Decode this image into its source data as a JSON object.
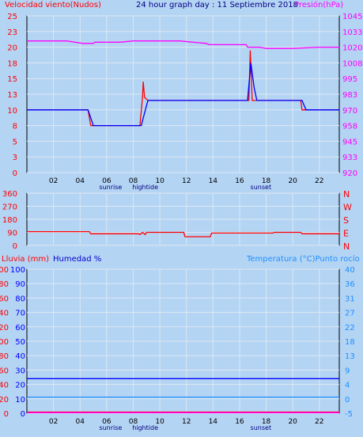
{
  "header": {
    "wind_title": "Velocidad viento(Nudos)",
    "graph_title": "24 hour graph day : 11 Septiembre 2018",
    "pressure_title": "Presión(hPa)"
  },
  "colors": {
    "background": "#b4d4f4",
    "grid": "#dce8f2",
    "red": "#ff0000",
    "blue": "#0000ff",
    "magenta": "#ff00ff",
    "cyan": "#1e90ff"
  },
  "chart_data": [
    {
      "type": "line",
      "panel": "wind-pressure",
      "x_ticks": [
        "02",
        "04",
        "06",
        "08",
        "10",
        "12",
        "14",
        "16",
        "18",
        "20",
        "22"
      ],
      "x_markers": {
        "sunrise": "sunrise",
        "hightide": "hightide",
        "sunset": "sunset"
      },
      "y_left_ticks": [
        "0",
        "3",
        "5",
        "8",
        "10",
        "13",
        "15",
        "18",
        "20",
        "23",
        "25"
      ],
      "y_left_range": [
        0,
        25
      ],
      "y_right_ticks": [
        "920",
        "933",
        "945",
        "958",
        "970",
        "983",
        "995",
        "1008",
        "1020",
        "1033",
        "1045"
      ],
      "y_right_range": [
        920,
        1045
      ],
      "series": [
        {
          "axis": "left",
          "color": "red",
          "points": [
            [
              0,
              10
            ],
            [
              4.6,
              10
            ],
            [
              4.8,
              7.5
            ],
            [
              8.5,
              7.5
            ],
            [
              8.7,
              12
            ],
            [
              8.75,
              14.5
            ],
            [
              8.85,
              12
            ],
            [
              9.1,
              11.5
            ],
            [
              16.7,
              11.5
            ],
            [
              16.8,
              19.5
            ],
            [
              16.95,
              11.5
            ],
            [
              20.6,
              11.5
            ],
            [
              20.7,
              10
            ],
            [
              23.5,
              10
            ]
          ]
        },
        {
          "axis": "left",
          "color": "blue",
          "points": [
            [
              0,
              10
            ],
            [
              4.6,
              10
            ],
            [
              5.0,
              7.5
            ],
            [
              8.6,
              7.5
            ],
            [
              9.1,
              11.5
            ],
            [
              16.6,
              11.5
            ],
            [
              16.85,
              17.5
            ],
            [
              17.1,
              13.5
            ],
            [
              17.3,
              11.5
            ],
            [
              20.7,
              11.5
            ],
            [
              21.0,
              10
            ],
            [
              23.5,
              10
            ]
          ]
        },
        {
          "axis": "right",
          "color": "magenta",
          "points": [
            [
              0,
              1025
            ],
            [
              3.0,
              1025
            ],
            [
              4.2,
              1023
            ],
            [
              5.0,
              1023
            ],
            [
              5.1,
              1024
            ],
            [
              7.0,
              1024
            ],
            [
              8.0,
              1025
            ],
            [
              11.5,
              1025
            ],
            [
              12.5,
              1024
            ],
            [
              13.5,
              1023
            ],
            [
              13.7,
              1022
            ],
            [
              16.5,
              1022
            ],
            [
              16.6,
              1020
            ],
            [
              17.5,
              1020
            ],
            [
              18.0,
              1019
            ],
            [
              20.0,
              1019
            ],
            [
              22.0,
              1020
            ],
            [
              23.5,
              1020
            ]
          ]
        }
      ]
    },
    {
      "type": "line",
      "panel": "wind-direction",
      "y_left_ticks": [
        "0",
        "90",
        "180",
        "270",
        "360"
      ],
      "y_left_range": [
        0,
        360
      ],
      "y_right_labels": [
        "N",
        "E",
        "S",
        "W",
        "N"
      ],
      "series": [
        {
          "axis": "left",
          "color": "red",
          "points": [
            [
              0,
              95
            ],
            [
              4.7,
              95
            ],
            [
              4.8,
              80
            ],
            [
              8.4,
              80
            ],
            [
              8.5,
              75
            ],
            [
              8.7,
              90
            ],
            [
              8.9,
              75
            ],
            [
              9.0,
              90
            ],
            [
              11.8,
              90
            ],
            [
              11.9,
              60
            ],
            [
              13.8,
              60
            ],
            [
              13.9,
              85
            ],
            [
              17.0,
              85
            ],
            [
              18.5,
              85
            ],
            [
              18.6,
              90
            ],
            [
              20.6,
              90
            ],
            [
              20.7,
              80
            ],
            [
              23.5,
              80
            ]
          ]
        }
      ]
    },
    {
      "type": "line",
      "panel": "rain-humidity-temperature",
      "title_rain": "Lluvia (mm)",
      "title_humidity": "Humedad %",
      "title_temperature": "Temperatura (°C)Punto rocío",
      "y_rain_ticks": [
        "0",
        "20",
        "40",
        "60",
        "80",
        "100",
        "120",
        "140",
        "160",
        "180",
        "200"
      ],
      "y_humidity_ticks": [
        "0",
        "10",
        "20",
        "30",
        "40",
        "50",
        "60",
        "70",
        "80",
        "90",
        "100"
      ],
      "y_humidity_range": [
        0,
        100
      ],
      "y_right_ticks": [
        "-5",
        "0",
        "4",
        "9",
        "13",
        "18",
        "22",
        "27",
        "31",
        "36",
        "40"
      ],
      "y_right_range": [
        -5,
        40
      ],
      "series": [
        {
          "axis": "humidity",
          "color": "blue",
          "name": "Humedad %",
          "points": [
            [
              0,
              24
            ],
            [
              23.5,
              24
            ]
          ]
        },
        {
          "axis": "humidity",
          "color": "cyan",
          "points": [
            [
              0,
              11.2
            ],
            [
              23.5,
              11.2
            ]
          ]
        },
        {
          "axis": "humidity",
          "color": "red",
          "points": [
            [
              0,
              0.8
            ],
            [
              23.5,
              0.8
            ]
          ]
        },
        {
          "axis": "humidity",
          "color": "magenta",
          "points": [
            [
              0,
              0.4
            ],
            [
              23.5,
              0.4
            ]
          ]
        }
      ]
    }
  ]
}
